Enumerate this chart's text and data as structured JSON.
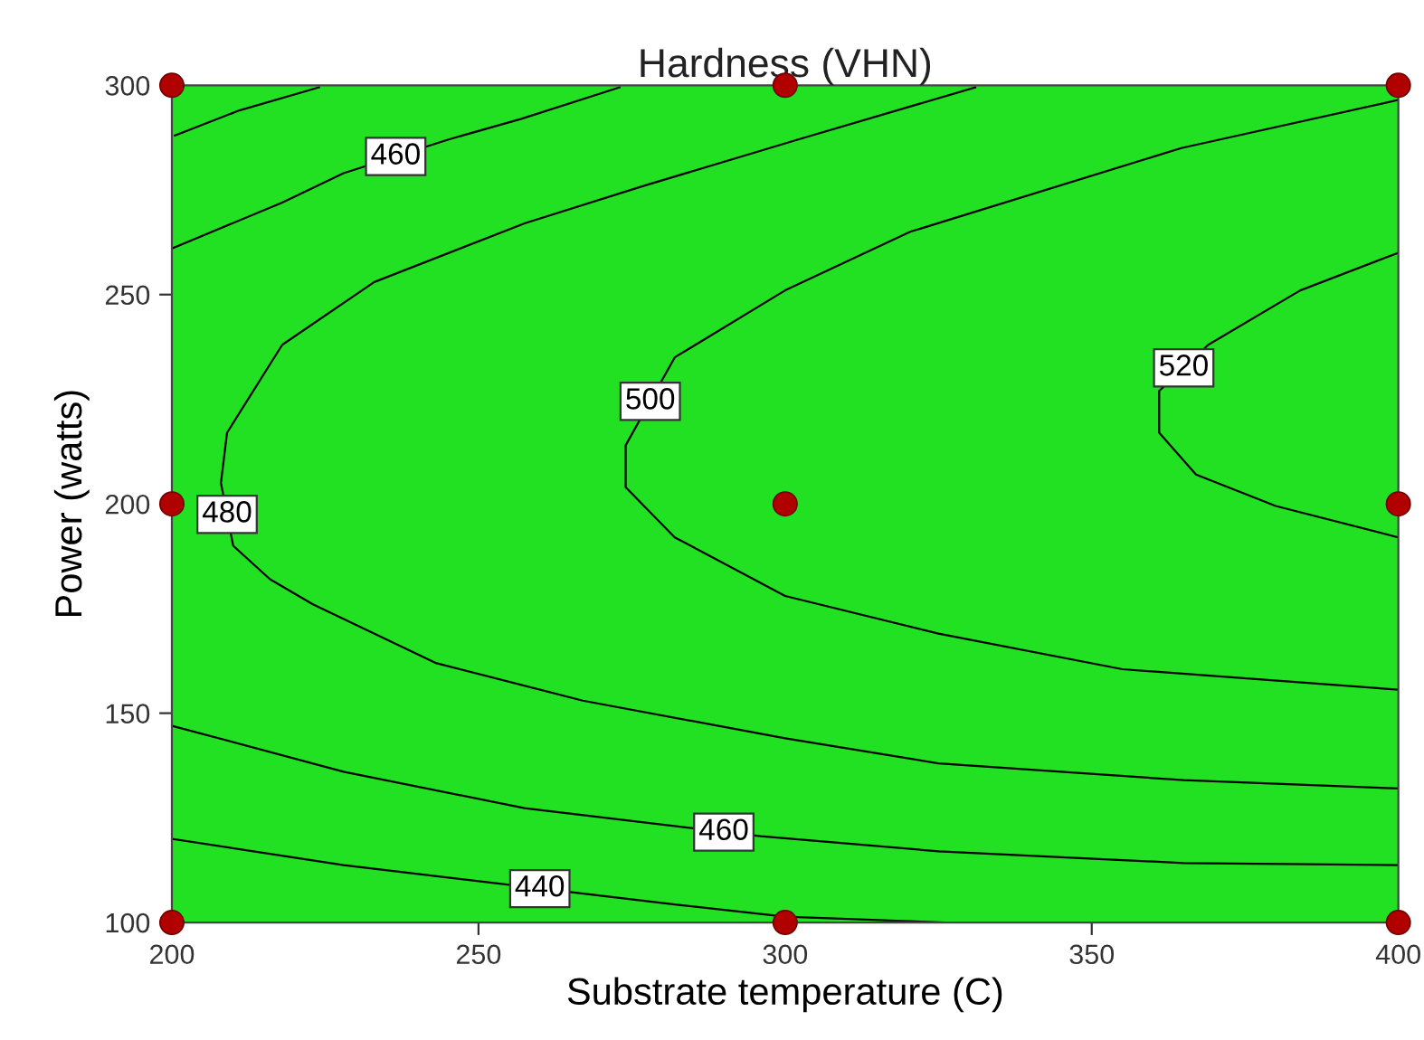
{
  "chart_data": {
    "type": "line",
    "title": "Hardness (VHN)",
    "xlabel": "Substrate temperature (C)",
    "ylabel": "Power (watts)",
    "xlim": [
      200,
      400
    ],
    "ylim": [
      100,
      300
    ],
    "xticks": [
      200,
      250,
      300,
      350,
      400
    ],
    "yticks": [
      100,
      150,
      200,
      250,
      300
    ],
    "grid": false,
    "marker": "none",
    "line_style": "solid",
    "series": [
      {
        "color": "#000000",
        "x": [
          200.5,
          211,
          224
        ],
        "values": [
          288,
          294,
          299.5
        ]
      },
      {
        "color": "#000000",
        "x": [
          200,
          218,
          228,
          245,
          257,
          273
        ],
        "values": [
          261,
          272,
          279,
          287,
          292,
          299.5
        ]
      },
      {
        "color": "#000000",
        "x": [
          331,
          302,
          277,
          257.5,
          233,
          218,
          209,
          208,
          210,
          216,
          223,
          243,
          267,
          300,
          325,
          365,
          400
        ],
        "values": [
          299.5,
          287,
          276,
          267,
          253,
          238,
          217,
          205,
          190,
          182,
          176,
          162,
          153,
          144,
          138,
          134,
          132
        ]
      },
      {
        "color": "#000000",
        "x": [
          400,
          364.6,
          320.4,
          300,
          282,
          274,
          274,
          282,
          300,
          325,
          355,
          400
        ],
        "values": [
          296.5,
          285,
          265,
          251,
          235,
          214,
          204,
          192,
          178,
          169,
          160.5,
          155.6
        ]
      },
      {
        "color": "#000000",
        "x": [
          400,
          384,
          369,
          361,
          361,
          367,
          380,
          400
        ],
        "values": [
          260,
          251,
          238,
          227,
          217,
          207,
          199.5,
          192
        ]
      },
      {
        "color": "#000000",
        "x": [
          200,
          228,
          257.5,
          296,
          325,
          365,
          400
        ],
        "values": [
          147,
          136,
          127.3,
          120.6,
          117,
          114.2,
          113.7
        ]
      },
      {
        "color": "#000000",
        "x": [
          200,
          228,
          282,
          300,
          326
        ],
        "values": [
          120,
          113.7,
          104.3,
          101.4,
          100
        ]
      },
      {
        "type": "scatter",
        "color": "#b00000",
        "marker": "circle",
        "x": [
          200,
          300,
          400,
          200,
          300,
          400,
          200,
          300,
          400
        ],
        "values": [
          100,
          100,
          100,
          200,
          200,
          200,
          300,
          300,
          300
        ]
      }
    ],
    "annotations": [
      {
        "text": "460",
        "x": 236.5,
        "y": 283
      },
      {
        "text": "480",
        "x": 209,
        "y": 197.5
      },
      {
        "text": "500",
        "x": 278,
        "y": 224.5
      },
      {
        "text": "520",
        "x": 365,
        "y": 232.5
      },
      {
        "text": "460",
        "x": 290,
        "y": 121.6
      },
      {
        "text": "440",
        "x": 260,
        "y": 108.1
      }
    ]
  }
}
